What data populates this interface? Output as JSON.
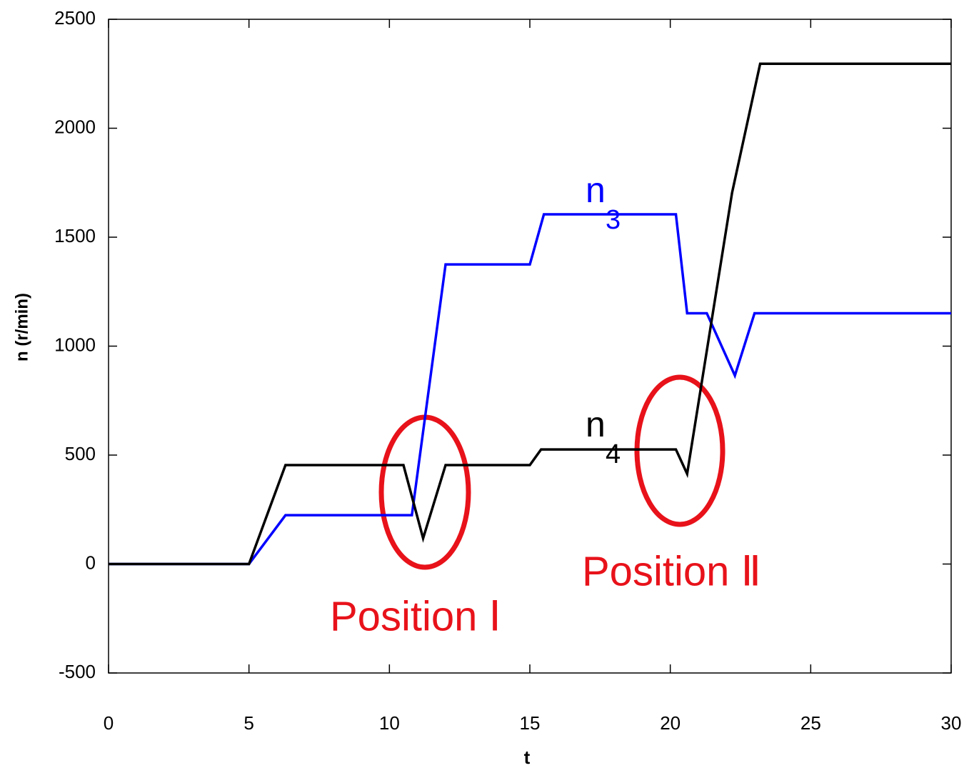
{
  "chart_data": {
    "type": "line",
    "x_label": "t",
    "y_label": "n (r/min)",
    "xlim": [
      0,
      30
    ],
    "xticks": [
      0,
      5,
      10,
      15,
      20,
      25,
      30
    ],
    "ylim": [
      -500,
      2500
    ],
    "yticks": [
      -500,
      0,
      500,
      1000,
      1500,
      2000,
      2500
    ],
    "series": [
      {
        "name": "n3",
        "label": "n",
        "label_sub": "3",
        "color": "#0000ff",
        "x": [
          0,
          5,
          6.3,
          10.8,
          12,
          15,
          15.5,
          20.2,
          20.6,
          21.3,
          22.3,
          23,
          30
        ],
        "values": [
          0,
          0,
          224,
          224,
          1375,
          1375,
          1605,
          1605,
          1151,
          1151,
          865,
          1151,
          1151
        ]
      },
      {
        "name": "n4",
        "label": "n",
        "label_sub": "4",
        "color": "#000000",
        "x": [
          0,
          5,
          6.3,
          10.5,
          11.2,
          12,
          15,
          15.4,
          20.2,
          20.6,
          22.2,
          23.2,
          30
        ],
        "values": [
          0,
          0,
          454,
          454,
          118,
          454,
          454,
          526,
          526,
          414,
          1704,
          2296,
          2296
        ]
      }
    ],
    "annotations": [
      "Position Ⅰ",
      "Position Ⅱ"
    ]
  }
}
